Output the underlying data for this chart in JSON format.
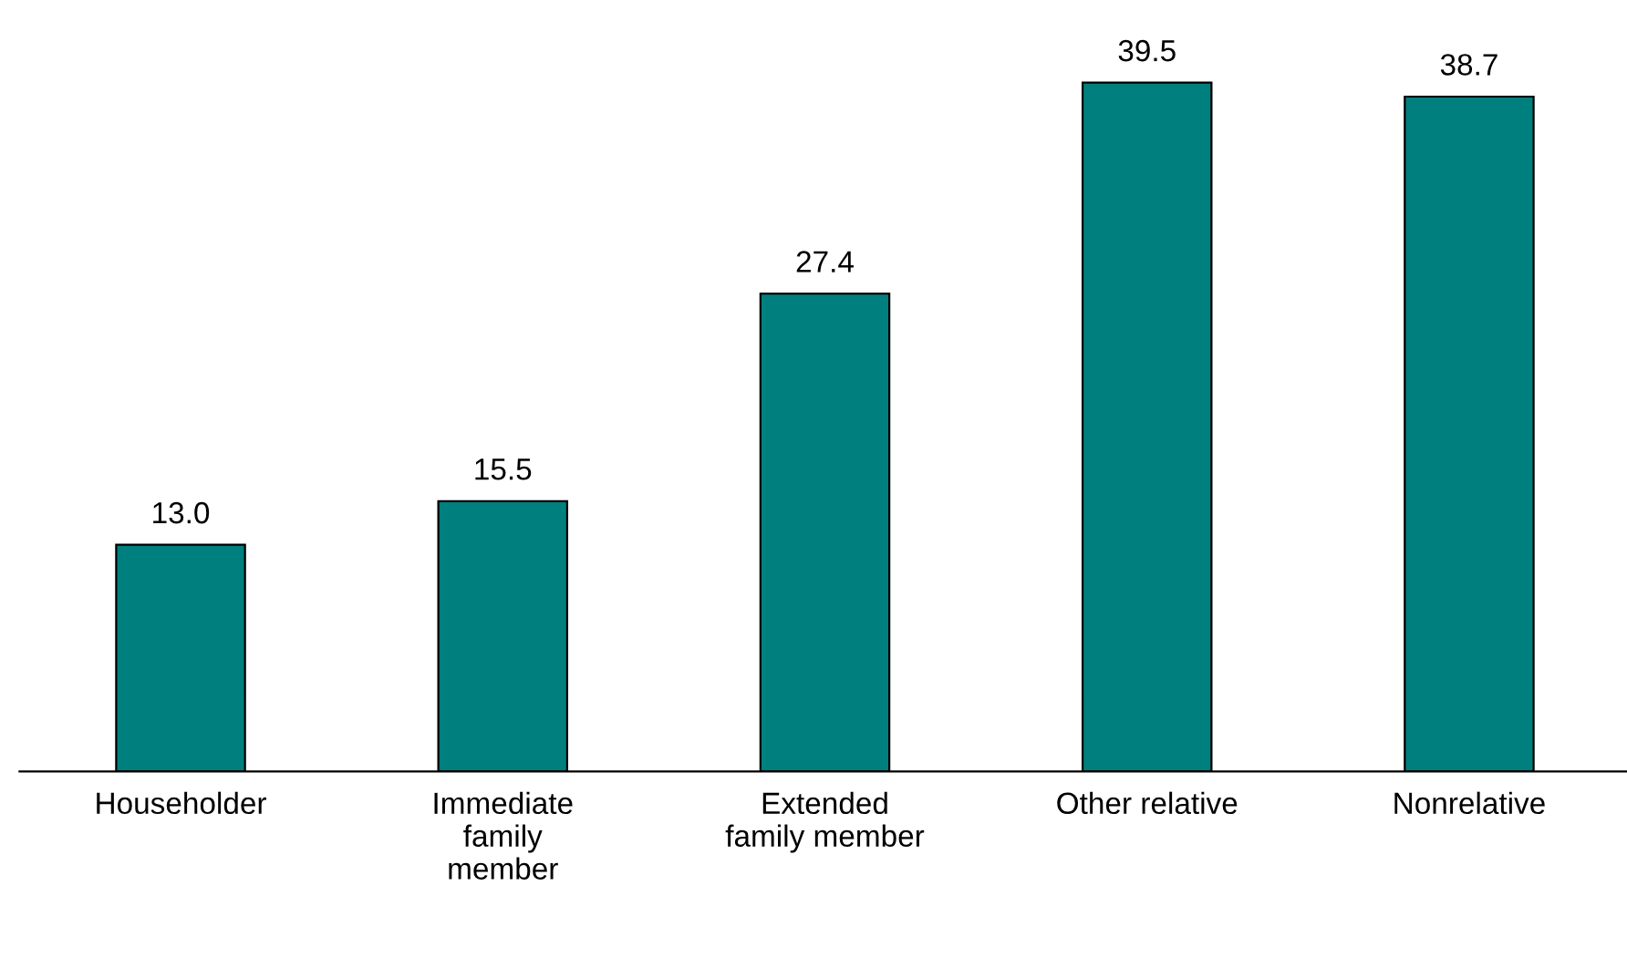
{
  "chart_data": {
    "type": "bar",
    "categories": [
      "Householder",
      "Immediate\nfamily\nmember",
      "Extended\nfamily member",
      "Other relative",
      "Nonrelative"
    ],
    "values": [
      13.0,
      15.5,
      27.4,
      39.5,
      38.7
    ],
    "value_labels": [
      "13.0",
      "15.5",
      "27.4",
      "39.5",
      "38.7"
    ],
    "color": "#007f7f",
    "grid": false,
    "legend": false
  }
}
